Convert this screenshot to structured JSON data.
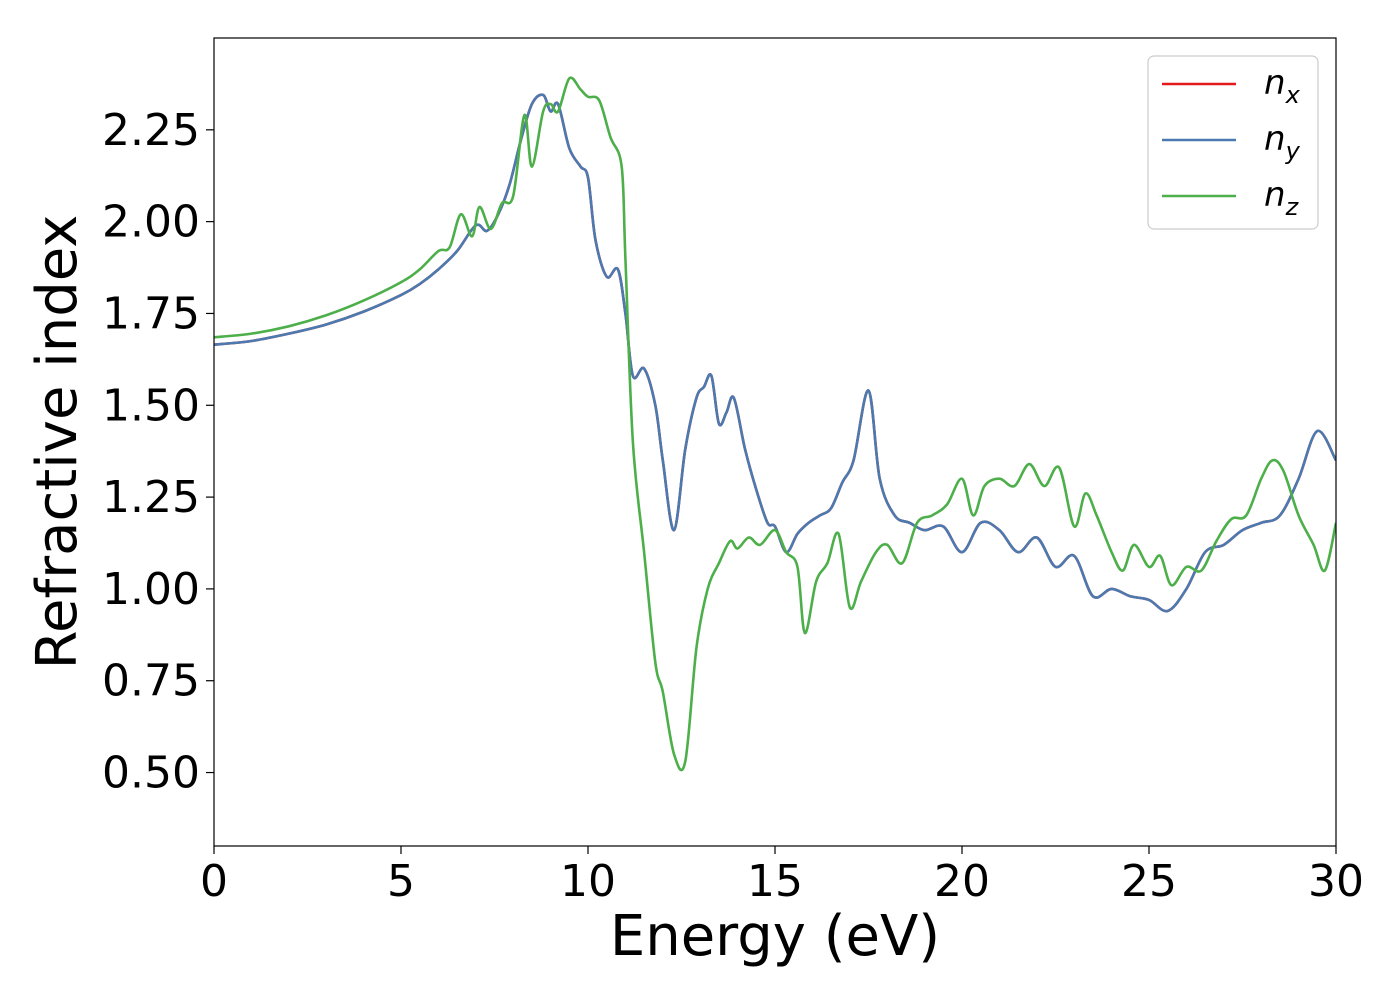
{
  "chart_data": {
    "type": "line",
    "title": "",
    "xlabel": "Energy (eV)",
    "ylabel": "Refractive index",
    "xlim": [
      0,
      30
    ],
    "ylim": [
      0.3,
      2.5
    ],
    "xticks": [
      0,
      5,
      10,
      15,
      20,
      25,
      30
    ],
    "xtick_labels": [
      "0",
      "5",
      "10",
      "15",
      "20",
      "25",
      "30"
    ],
    "yticks": [
      0.5,
      0.75,
      1.0,
      1.25,
      1.5,
      1.75,
      2.0,
      2.25
    ],
    "ytick_labels": [
      "0.50",
      "0.75",
      "1.00",
      "1.25",
      "1.50",
      "1.75",
      "2.00",
      "2.25"
    ],
    "grid": false,
    "legend_position": "top-right",
    "series": [
      {
        "name": "n",
        "subscript": "x",
        "color": "#e41a1c",
        "x": [
          0,
          1,
          2,
          3,
          4,
          5,
          5.5,
          6,
          6.5,
          7,
          7.3,
          7.6,
          7.9,
          8.2,
          8.5,
          8.8,
          9.0,
          9.2,
          9.5,
          9.8,
          10.0,
          10.2,
          10.5,
          10.8,
          11.0,
          11.2,
          11.5,
          11.8,
          12.0,
          12.3,
          12.6,
          12.9,
          13.1,
          13.3,
          13.5,
          13.7,
          13.9,
          14.2,
          14.5,
          14.8,
          15.0,
          15.3,
          15.6,
          15.9,
          16.2,
          16.5,
          16.8,
          17.1,
          17.5,
          17.8,
          18.2,
          18.6,
          19.0,
          19.5,
          20.0,
          20.5,
          21.0,
          21.5,
          22.0,
          22.5,
          23.0,
          23.5,
          24.0,
          24.5,
          25.0,
          25.5,
          26.0,
          26.5,
          27.0,
          27.5,
          28.0,
          28.5,
          29.0,
          29.5,
          30.0
        ],
        "y": [
          1.665,
          1.675,
          1.695,
          1.72,
          1.755,
          1.8,
          1.83,
          1.87,
          1.92,
          1.99,
          1.975,
          2.02,
          2.1,
          2.22,
          2.32,
          2.345,
          2.3,
          2.32,
          2.2,
          2.15,
          2.12,
          1.95,
          1.85,
          1.87,
          1.75,
          1.58,
          1.6,
          1.5,
          1.35,
          1.16,
          1.38,
          1.52,
          1.55,
          1.58,
          1.45,
          1.48,
          1.52,
          1.38,
          1.27,
          1.18,
          1.17,
          1.1,
          1.15,
          1.18,
          1.2,
          1.22,
          1.29,
          1.35,
          1.54,
          1.3,
          1.2,
          1.18,
          1.16,
          1.17,
          1.1,
          1.18,
          1.16,
          1.1,
          1.14,
          1.06,
          1.09,
          0.98,
          1.0,
          0.98,
          0.97,
          0.94,
          1.0,
          1.1,
          1.12,
          1.16,
          1.18,
          1.2,
          1.3,
          1.43,
          1.35
        ]
      },
      {
        "name": "n",
        "subscript": "y",
        "color": "#4a7ab0",
        "x": [
          0,
          1,
          2,
          3,
          4,
          5,
          5.5,
          6,
          6.5,
          7,
          7.3,
          7.6,
          7.9,
          8.2,
          8.5,
          8.8,
          9.0,
          9.2,
          9.5,
          9.8,
          10.0,
          10.2,
          10.5,
          10.8,
          11.0,
          11.2,
          11.5,
          11.8,
          12.0,
          12.3,
          12.6,
          12.9,
          13.1,
          13.3,
          13.5,
          13.7,
          13.9,
          14.2,
          14.5,
          14.8,
          15.0,
          15.3,
          15.6,
          15.9,
          16.2,
          16.5,
          16.8,
          17.1,
          17.5,
          17.8,
          18.2,
          18.6,
          19.0,
          19.5,
          20.0,
          20.5,
          21.0,
          21.5,
          22.0,
          22.5,
          23.0,
          23.5,
          24.0,
          24.5,
          25.0,
          25.5,
          26.0,
          26.5,
          27.0,
          27.5,
          28.0,
          28.5,
          29.0,
          29.5,
          30.0
        ],
        "y": [
          1.665,
          1.675,
          1.695,
          1.72,
          1.755,
          1.8,
          1.83,
          1.87,
          1.92,
          1.99,
          1.975,
          2.02,
          2.1,
          2.22,
          2.32,
          2.345,
          2.3,
          2.32,
          2.2,
          2.15,
          2.12,
          1.95,
          1.85,
          1.87,
          1.75,
          1.58,
          1.6,
          1.5,
          1.35,
          1.16,
          1.38,
          1.52,
          1.55,
          1.58,
          1.45,
          1.48,
          1.52,
          1.38,
          1.27,
          1.18,
          1.17,
          1.1,
          1.15,
          1.18,
          1.2,
          1.22,
          1.29,
          1.35,
          1.54,
          1.3,
          1.2,
          1.18,
          1.16,
          1.17,
          1.1,
          1.18,
          1.16,
          1.1,
          1.14,
          1.06,
          1.09,
          0.98,
          1.0,
          0.98,
          0.97,
          0.94,
          1.0,
          1.1,
          1.12,
          1.16,
          1.18,
          1.2,
          1.3,
          1.43,
          1.35
        ]
      },
      {
        "name": "n",
        "subscript": "z",
        "color": "#4daf4a",
        "x": [
          0,
          1,
          2,
          3,
          4,
          5,
          5.5,
          6,
          6.3,
          6.6,
          6.9,
          7.1,
          7.4,
          7.7,
          8.0,
          8.3,
          8.5,
          8.8,
          9.0,
          9.2,
          9.5,
          9.8,
          10.0,
          10.3,
          10.6,
          10.9,
          11.0,
          11.2,
          11.5,
          11.8,
          12.0,
          12.3,
          12.6,
          12.9,
          13.2,
          13.5,
          13.8,
          14.0,
          14.3,
          14.6,
          15.0,
          15.3,
          15.6,
          15.8,
          16.1,
          16.4,
          16.7,
          17.0,
          17.3,
          17.7,
          18.0,
          18.4,
          18.8,
          19.2,
          19.6,
          20.0,
          20.3,
          20.6,
          21.0,
          21.4,
          21.8,
          22.2,
          22.6,
          23.0,
          23.3,
          23.6,
          24.0,
          24.3,
          24.6,
          25.0,
          25.3,
          25.6,
          26.0,
          26.4,
          26.8,
          27.2,
          27.6,
          28.0,
          28.3,
          28.6,
          29.0,
          29.4,
          29.7,
          30.0
        ],
        "y": [
          1.685,
          1.695,
          1.715,
          1.745,
          1.785,
          1.835,
          1.87,
          1.92,
          1.93,
          2.02,
          1.96,
          2.04,
          1.98,
          2.05,
          2.07,
          2.29,
          2.15,
          2.3,
          2.32,
          2.3,
          2.39,
          2.36,
          2.34,
          2.33,
          2.23,
          2.15,
          1.9,
          1.4,
          1.1,
          0.8,
          0.72,
          0.55,
          0.53,
          0.84,
          1.0,
          1.07,
          1.13,
          1.11,
          1.14,
          1.12,
          1.16,
          1.1,
          1.06,
          0.88,
          1.02,
          1.07,
          1.15,
          0.95,
          1.02,
          1.1,
          1.12,
          1.07,
          1.18,
          1.2,
          1.23,
          1.3,
          1.2,
          1.28,
          1.3,
          1.28,
          1.34,
          1.28,
          1.33,
          1.17,
          1.26,
          1.2,
          1.1,
          1.05,
          1.12,
          1.06,
          1.09,
          1.01,
          1.06,
          1.05,
          1.13,
          1.19,
          1.2,
          1.3,
          1.35,
          1.32,
          1.2,
          1.12,
          1.05,
          1.18
        ]
      }
    ]
  }
}
